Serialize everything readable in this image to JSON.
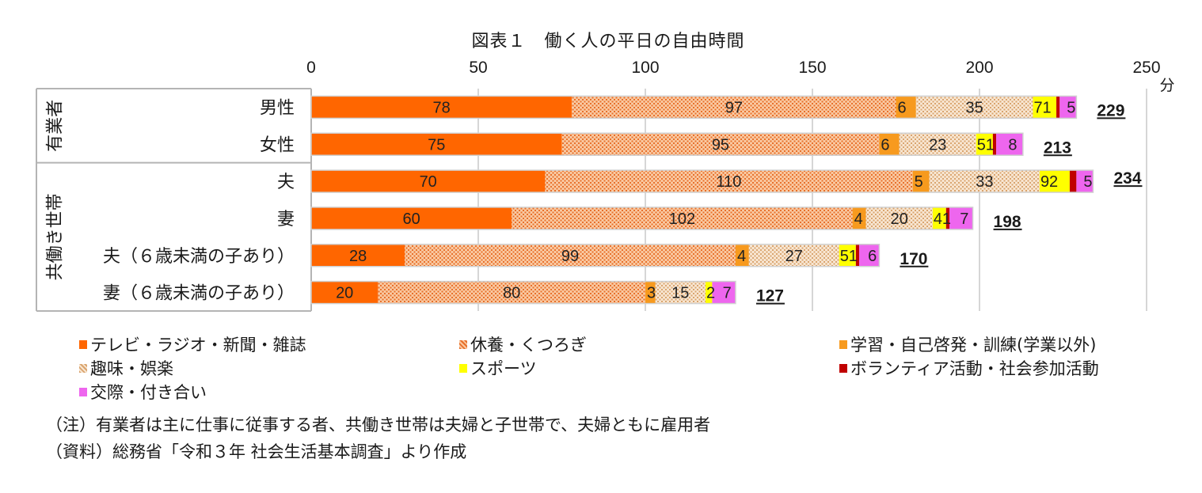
{
  "chart_data": {
    "type": "bar",
    "orientation": "horizontal",
    "stacked": true,
    "title": "図表１　働く人の平日の自由時間",
    "unit": "分",
    "xlim": [
      0,
      250
    ],
    "xticks": [
      "0",
      "50",
      "100",
      "150",
      "200",
      "250"
    ],
    "groups": [
      {
        "name": "有業者",
        "categories": [
          "男性",
          "女性"
        ]
      },
      {
        "name": "共働き世帯",
        "categories": [
          "夫",
          "妻",
          "夫（６歳未満の子あり）",
          "妻（６歳未満の子あり）"
        ]
      }
    ],
    "categories": [
      "男性",
      "女性",
      "夫",
      "妻",
      "夫（６歳未満の子あり）",
      "妻（６歳未満の子あり）"
    ],
    "series": [
      {
        "name": "テレビ・ラジオ・新聞・雑誌",
        "color": "#FF6600",
        "pattern": "solid",
        "values": [
          78,
          75,
          70,
          60,
          28,
          20
        ]
      },
      {
        "name": "休養・くつろぎ",
        "color": "#F4A36A",
        "pattern": "dots",
        "values": [
          97,
          95,
          110,
          102,
          99,
          80
        ]
      },
      {
        "name": "学習・自己啓発・訓練(学業以外)",
        "color": "#F79A1E",
        "pattern": "solid",
        "values": [
          6,
          6,
          5,
          4,
          4,
          3
        ]
      },
      {
        "name": "趣味・娯楽",
        "color": "#F3D2B0",
        "pattern": "dots",
        "values": [
          35,
          23,
          33,
          20,
          27,
          15
        ]
      },
      {
        "name": "スポーツ",
        "color": "#FFFF00",
        "pattern": "solid",
        "values": [
          7,
          5,
          9,
          4,
          5,
          2
        ]
      },
      {
        "name": "ボランティア活動・社会参加活動",
        "color": "#C00000",
        "pattern": "solid",
        "values": [
          1,
          1,
          2,
          1,
          1,
          0
        ]
      },
      {
        "name": "交際・付き合い",
        "color": "#EE66EE",
        "pattern": "solid",
        "values": [
          5,
          8,
          5,
          7,
          6,
          7
        ]
      }
    ],
    "segment_labels": [
      [
        "78",
        "97",
        "6",
        "35",
        "7",
        "1",
        "5"
      ],
      [
        "75",
        "95",
        "6",
        "23",
        "5",
        "1",
        "8"
      ],
      [
        "70",
        "110",
        "5",
        "33",
        "9",
        "2",
        "5"
      ],
      [
        "60",
        "102",
        "4",
        "20",
        "4",
        "1",
        "7"
      ],
      [
        "28",
        "99",
        "4",
        "27",
        "5",
        "1",
        "6"
      ],
      [
        "20",
        "80",
        "3",
        "15",
        "2",
        "",
        "7"
      ]
    ],
    "totals": [
      "229",
      "213",
      "234",
      "198",
      "170",
      "127"
    ]
  },
  "legend": [
    {
      "label": "テレビ・ラジオ・新聞・雑誌",
      "color": "#FF6600"
    },
    {
      "label": "休養・くつろぎ",
      "color": "#F4A36A"
    },
    {
      "label": "学習・自己啓発・訓練(学業以外)",
      "color": "#F79A1E"
    },
    {
      "label": "趣味・娯楽",
      "color": "#F3D2B0"
    },
    {
      "label": "スポーツ",
      "color": "#FFFF00"
    },
    {
      "label": "ボランティア活動・社会参加活動",
      "color": "#C00000"
    },
    {
      "label": "交際・付き合い",
      "color": "#EE66EE"
    }
  ],
  "notes": {
    "note": "（注）有業者は主に仕事に従事する者、共働き世帯は夫婦と子世帯で、夫婦ともに雇用者",
    "source": "（資料）総務省「令和３年 社会生活基本調査」より作成"
  }
}
